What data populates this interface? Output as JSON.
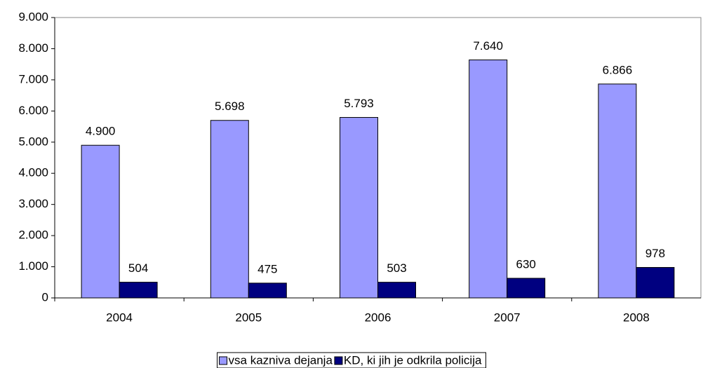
{
  "chart_data": {
    "type": "bar",
    "categories": [
      "2004",
      "2005",
      "2006",
      "2007",
      "2008"
    ],
    "series": [
      {
        "name": "vsa kazniva dejanja",
        "color": "#9999ff",
        "values": [
          4900,
          5698,
          5793,
          7640,
          6866
        ],
        "value_labels": [
          "4.900",
          "5.698",
          "5.793",
          "7.640",
          "6.866"
        ]
      },
      {
        "name": "KD, ki jih je odkrila policija",
        "color": "#000080",
        "values": [
          504,
          475,
          503,
          630,
          978
        ]
      }
    ],
    "ylim": [
      0,
      9000
    ],
    "yticks": [
      0,
      {
        "value": 1000,
        "label": "1.000"
      },
      {
        "value": 2000,
        "label": "2.000"
      },
      {
        "value": 3000,
        "label": "3.000"
      },
      {
        "value": 4000,
        "label": "4.000"
      },
      {
        "value": 5000,
        "label": "5.000"
      },
      {
        "value": 6000,
        "label": "6.000"
      },
      {
        "value": 7000,
        "label": "7.000"
      },
      {
        "value": 8000,
        "label": "8.000"
      },
      {
        "value": 9000,
        "label": "9.000"
      }
    ],
    "legend": "bottom"
  }
}
